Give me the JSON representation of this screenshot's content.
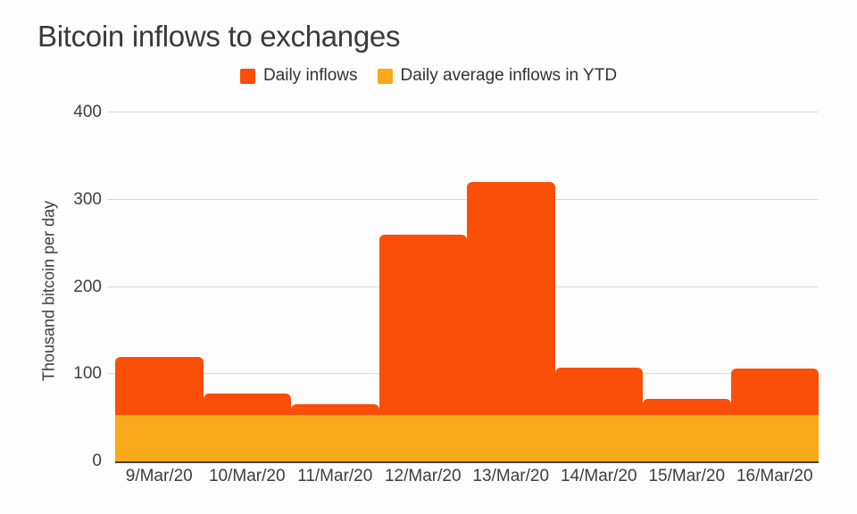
{
  "page_title": "Bitcoin inflows to exchanges",
  "chart_data": {
    "type": "bar",
    "title": "Bitcoin inflows to exchanges",
    "categories": [
      "9/Mar/20",
      "10/Mar/20",
      "11/Mar/20",
      "12/Mar/20",
      "13/Mar/20",
      "14/Mar/20",
      "15/Mar/20",
      "16/Mar/20"
    ],
    "series": [
      {
        "name": "Daily inflows",
        "render": "column",
        "color": "#FB4E09",
        "values": [
          120,
          78,
          65,
          260,
          320,
          107,
          72,
          106
        ]
      },
      {
        "name": "Daily average inflows in YTD",
        "render": "band",
        "color": "#FAA91A",
        "values": [
          53,
          53,
          53,
          53,
          53,
          53,
          53,
          53
        ]
      }
    ],
    "xlabel": "",
    "ylabel": "Thousand bitcoin per day",
    "ylim": [
      0,
      400
    ],
    "yticks": [
      0,
      100,
      200,
      300,
      400
    ],
    "grid": true,
    "legend_position": "top",
    "colors": {
      "axis": "#424242",
      "gridline": "#dadada",
      "text": "#3c3c3c",
      "background": "#fdfdfd"
    }
  }
}
